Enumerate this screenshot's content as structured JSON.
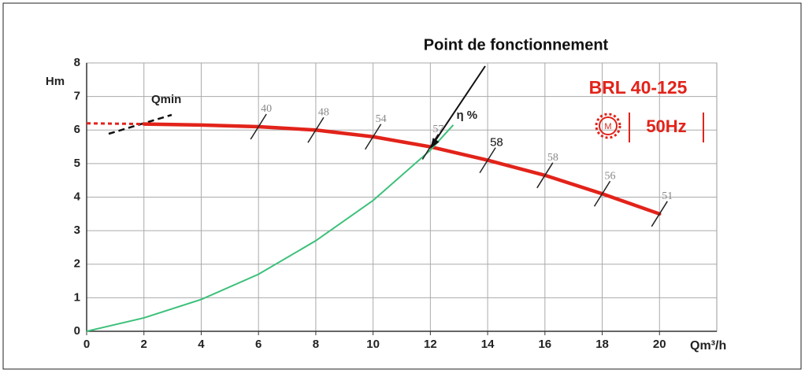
{
  "chart_data": {
    "type": "line",
    "xlabel": "Qm³/h",
    "ylabel": "Hm",
    "xlim": [
      0,
      22
    ],
    "ylim": [
      0,
      8
    ],
    "xticks": [
      0,
      2,
      4,
      6,
      8,
      10,
      12,
      14,
      16,
      18,
      20
    ],
    "yticks": [
      0,
      1,
      2,
      3,
      4,
      5,
      6,
      7,
      8
    ],
    "grid": true,
    "series": [
      {
        "name": "BRL 40-125",
        "color": "#e2231a",
        "x": [
          0,
          2,
          4,
          6,
          8,
          10,
          12,
          14,
          16,
          18,
          20
        ],
        "values": [
          6.2,
          6.18,
          6.15,
          6.1,
          6.0,
          5.8,
          5.5,
          5.1,
          4.65,
          4.1,
          3.5
        ]
      },
      {
        "name": "η %",
        "color": "#3cc07a",
        "x": [
          0,
          2,
          4,
          6,
          8,
          10,
          12,
          12.8
        ],
        "values": [
          0,
          0.4,
          0.95,
          1.7,
          2.7,
          3.9,
          5.4,
          6.15
        ]
      }
    ],
    "efficiency": {
      "x": [
        6,
        8,
        10,
        12,
        14,
        16,
        18,
        20
      ],
      "values": [
        40,
        48,
        54,
        57,
        58,
        58,
        56,
        51
      ]
    },
    "annotations": {
      "operating_point": {
        "text": "Point de fonctionnement",
        "x": 12,
        "y": 5.45
      },
      "qmin": "Qmin",
      "frequency": "50Hz",
      "motor": "M"
    }
  }
}
